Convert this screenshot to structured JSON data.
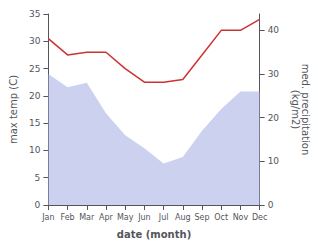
{
  "chart_data": {
    "type": "line",
    "xlabel": "date (month)",
    "ylabel": "max temp (C)",
    "y2label": "med. precipitation\n(kg/m2)",
    "categories": [
      "Jan",
      "Feb",
      "Mar",
      "Apr",
      "May",
      "Jun",
      "Jul",
      "Aug",
      "Sep",
      "Oct",
      "Nov",
      "Dec"
    ],
    "series": [
      {
        "type": "line",
        "color": "#cc3333",
        "values": [
          30.5,
          27.5,
          28.0,
          28.0,
          25.0,
          22.5,
          22.5,
          23.0,
          27.5,
          32.0,
          32.0,
          34.0
        ]
      },
      {
        "type": "area",
        "axis": "y2",
        "color": "#b0b8e8",
        "values": [
          30.0,
          27.0,
          28.0,
          21.0,
          16.0,
          13.0,
          9.5,
          11.0,
          17.0,
          22.0,
          26.0,
          26.0
        ]
      }
    ],
    "ylim": [
      0,
      35
    ],
    "yticks": [
      0,
      5,
      10,
      15,
      20,
      25,
      30,
      35
    ],
    "y2lim": [
      0,
      43.75
    ],
    "y2ticks": [
      0,
      10,
      20,
      30,
      40
    ],
    "grid": false
  }
}
